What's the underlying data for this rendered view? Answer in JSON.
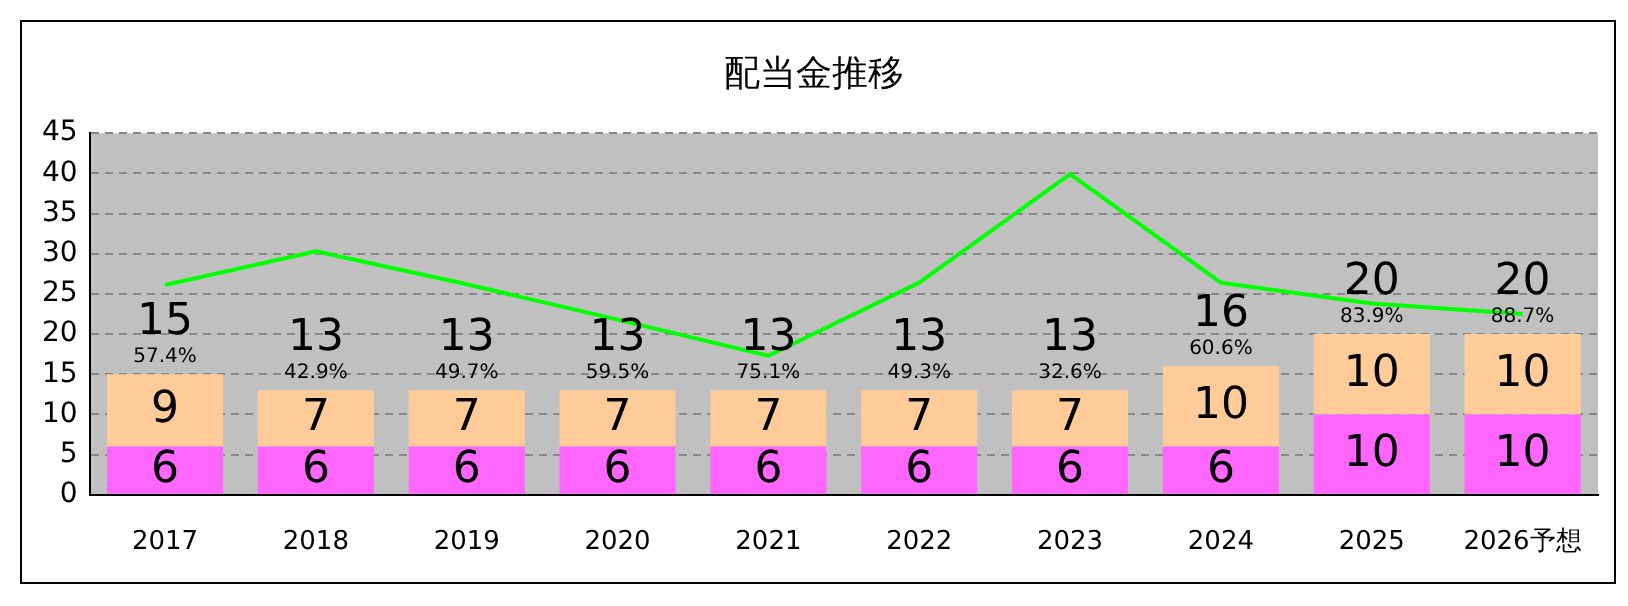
{
  "chart_data": {
    "type": "bar",
    "title": "配当金推移",
    "categories": [
      "2017",
      "2018",
      "2019",
      "2020",
      "2021",
      "2022",
      "2023",
      "2024",
      "2025",
      "2026予想"
    ],
    "stacked": true,
    "grid": "y",
    "legend": false,
    "ylim": [
      0,
      45
    ],
    "yticks": [
      0,
      5,
      10,
      15,
      20,
      25,
      30,
      35,
      40,
      45
    ],
    "totals": [
      "15",
      "13",
      "13",
      "13",
      "13",
      "13",
      "13",
      "16",
      "20",
      "20"
    ],
    "series": [
      {
        "color": "#ff66ff",
        "values": [
          6,
          6,
          6,
          6,
          6,
          6,
          6,
          6,
          10,
          10
        ],
        "value_labels": [
          "6",
          "6",
          "6",
          "6",
          "6",
          "6",
          "6",
          "6",
          "10",
          "10"
        ]
      },
      {
        "color": "#ffcc99",
        "values": [
          9,
          7,
          7,
          7,
          7,
          7,
          7,
          10,
          10,
          10
        ],
        "value_labels": [
          "9",
          "7",
          "7",
          "7",
          "7",
          "7",
          "7",
          "10",
          "10",
          "10"
        ]
      },
      {
        "type": "line",
        "color": "#00ff00",
        "values": [
          26.1,
          30.3,
          26.2,
          21.8,
          17.3,
          26.4,
          39.9,
          26.4,
          23.8,
          22.5
        ]
      }
    ],
    "annotations": [
      {
        "text": "57.4%",
        "x": "2017",
        "y": 15
      },
      {
        "text": "42.9%",
        "x": "2018",
        "y": 13
      },
      {
        "text": "49.7%",
        "x": "2019",
        "y": 13
      },
      {
        "text": "59.5%",
        "x": "2020",
        "y": 13
      },
      {
        "text": "75.1%",
        "x": "2021",
        "y": 13
      },
      {
        "text": "49.3%",
        "x": "2022",
        "y": 13
      },
      {
        "text": "32.6%",
        "x": "2023",
        "y": 13
      },
      {
        "text": "60.6%",
        "x": "2024",
        "y": 16
      },
      {
        "text": "83.9%",
        "x": "2025",
        "y": 20
      },
      {
        "text": "88.7%",
        "x": "2026予想",
        "y": 20
      }
    ]
  }
}
